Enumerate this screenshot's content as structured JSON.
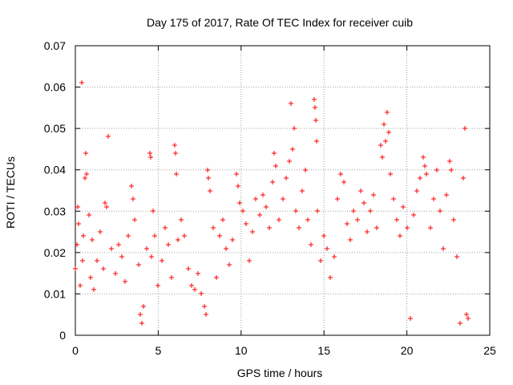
{
  "chart_data": {
    "type": "scatter",
    "title": "Day 175 of 2017, Rate Of TEC Index for receiver cuib",
    "xlabel": "GPS time / hours",
    "ylabel": "ROTI / TECUs",
    "xlim": [
      0,
      25
    ],
    "ylim": [
      0,
      0.07
    ],
    "xticks": [
      0,
      5,
      10,
      15,
      20,
      25
    ],
    "xtick_labels": [
      "0",
      "5",
      "10",
      "15",
      "20",
      "25"
    ],
    "yticks": [
      0,
      0.01,
      0.02,
      0.03,
      0.04,
      0.05,
      0.06,
      0.07
    ],
    "ytick_labels": [
      "0",
      "0.01",
      "0.02",
      "0.03",
      "0.04",
      "0.05",
      "0.06",
      "0.07"
    ],
    "grid": true,
    "marker": "+",
    "marker_color": "#ff0000",
    "series": [
      {
        "name": "ROTI",
        "points": [
          [
            0.0,
            0.016
          ],
          [
            0.1,
            0.022
          ],
          [
            0.15,
            0.031
          ],
          [
            0.2,
            0.027
          ],
          [
            0.3,
            0.012
          ],
          [
            0.4,
            0.061
          ],
          [
            0.45,
            0.018
          ],
          [
            0.5,
            0.024
          ],
          [
            0.6,
            0.038
          ],
          [
            0.65,
            0.044
          ],
          [
            0.7,
            0.039
          ],
          [
            0.8,
            0.029
          ],
          [
            0.9,
            0.014
          ],
          [
            1.0,
            0.023
          ],
          [
            1.1,
            0.011
          ],
          [
            1.3,
            0.018
          ],
          [
            1.5,
            0.025
          ],
          [
            1.7,
            0.016
          ],
          [
            1.8,
            0.032
          ],
          [
            1.9,
            0.031
          ],
          [
            2.0,
            0.048
          ],
          [
            2.2,
            0.021
          ],
          [
            2.4,
            0.015
          ],
          [
            2.6,
            0.022
          ],
          [
            2.8,
            0.019
          ],
          [
            3.0,
            0.013
          ],
          [
            3.2,
            0.024
          ],
          [
            3.4,
            0.036
          ],
          [
            3.5,
            0.033
          ],
          [
            3.6,
            0.028
          ],
          [
            3.8,
            0.017
          ],
          [
            3.9,
            0.005
          ],
          [
            4.0,
            0.003
          ],
          [
            4.1,
            0.007
          ],
          [
            4.3,
            0.021
          ],
          [
            4.5,
            0.044
          ],
          [
            4.55,
            0.043
          ],
          [
            4.6,
            0.019
          ],
          [
            4.7,
            0.03
          ],
          [
            4.8,
            0.024
          ],
          [
            5.0,
            0.012
          ],
          [
            5.2,
            0.018
          ],
          [
            5.4,
            0.026
          ],
          [
            5.6,
            0.022
          ],
          [
            5.8,
            0.014
          ],
          [
            6.0,
            0.046
          ],
          [
            6.05,
            0.044
          ],
          [
            6.1,
            0.039
          ],
          [
            6.2,
            0.023
          ],
          [
            6.4,
            0.028
          ],
          [
            6.6,
            0.024
          ],
          [
            6.8,
            0.016
          ],
          [
            7.0,
            0.012
          ],
          [
            7.2,
            0.011
          ],
          [
            7.4,
            0.015
          ],
          [
            7.6,
            0.01
          ],
          [
            7.8,
            0.007
          ],
          [
            7.9,
            0.005
          ],
          [
            8.0,
            0.04
          ],
          [
            8.05,
            0.038
          ],
          [
            8.1,
            0.035
          ],
          [
            8.3,
            0.026
          ],
          [
            8.5,
            0.014
          ],
          [
            8.7,
            0.024
          ],
          [
            8.9,
            0.028
          ],
          [
            9.1,
            0.021
          ],
          [
            9.3,
            0.017
          ],
          [
            9.5,
            0.023
          ],
          [
            9.7,
            0.039
          ],
          [
            9.8,
            0.036
          ],
          [
            9.9,
            0.032
          ],
          [
            10.1,
            0.03
          ],
          [
            10.3,
            0.027
          ],
          [
            10.5,
            0.018
          ],
          [
            10.7,
            0.025
          ],
          [
            10.9,
            0.033
          ],
          [
            11.1,
            0.029
          ],
          [
            11.3,
            0.034
          ],
          [
            11.5,
            0.031
          ],
          [
            11.7,
            0.026
          ],
          [
            11.9,
            0.037
          ],
          [
            12.0,
            0.044
          ],
          [
            12.1,
            0.041
          ],
          [
            12.3,
            0.028
          ],
          [
            12.5,
            0.033
          ],
          [
            12.7,
            0.038
          ],
          [
            12.9,
            0.042
          ],
          [
            13.0,
            0.056
          ],
          [
            13.1,
            0.045
          ],
          [
            13.2,
            0.05
          ],
          [
            13.3,
            0.03
          ],
          [
            13.5,
            0.026
          ],
          [
            13.7,
            0.035
          ],
          [
            13.9,
            0.04
          ],
          [
            14.0,
            0.028
          ],
          [
            14.2,
            0.022
          ],
          [
            14.4,
            0.057
          ],
          [
            14.45,
            0.055
          ],
          [
            14.5,
            0.052
          ],
          [
            14.55,
            0.047
          ],
          [
            14.6,
            0.03
          ],
          [
            14.8,
            0.018
          ],
          [
            15.0,
            0.024
          ],
          [
            15.2,
            0.021
          ],
          [
            15.4,
            0.014
          ],
          [
            15.6,
            0.019
          ],
          [
            15.8,
            0.033
          ],
          [
            16.0,
            0.039
          ],
          [
            16.2,
            0.037
          ],
          [
            16.4,
            0.027
          ],
          [
            16.6,
            0.023
          ],
          [
            16.8,
            0.03
          ],
          [
            17.0,
            0.028
          ],
          [
            17.2,
            0.035
          ],
          [
            17.4,
            0.032
          ],
          [
            17.6,
            0.025
          ],
          [
            17.8,
            0.03
          ],
          [
            18.0,
            0.034
          ],
          [
            18.2,
            0.026
          ],
          [
            18.4,
            0.046
          ],
          [
            18.5,
            0.043
          ],
          [
            18.6,
            0.051
          ],
          [
            18.7,
            0.047
          ],
          [
            18.8,
            0.054
          ],
          [
            18.9,
            0.049
          ],
          [
            19.0,
            0.039
          ],
          [
            19.2,
            0.033
          ],
          [
            19.4,
            0.028
          ],
          [
            19.6,
            0.024
          ],
          [
            19.8,
            0.031
          ],
          [
            20.0,
            0.026
          ],
          [
            20.2,
            0.004
          ],
          [
            20.4,
            0.029
          ],
          [
            20.6,
            0.035
          ],
          [
            20.8,
            0.038
          ],
          [
            21.0,
            0.043
          ],
          [
            21.1,
            0.041
          ],
          [
            21.2,
            0.039
          ],
          [
            21.4,
            0.026
          ],
          [
            21.6,
            0.033
          ],
          [
            21.8,
            0.04
          ],
          [
            22.0,
            0.03
          ],
          [
            22.2,
            0.021
          ],
          [
            22.4,
            0.034
          ],
          [
            22.6,
            0.042
          ],
          [
            22.7,
            0.04
          ],
          [
            22.8,
            0.028
          ],
          [
            23.0,
            0.019
          ],
          [
            23.2,
            0.003
          ],
          [
            23.4,
            0.038
          ],
          [
            23.5,
            0.05
          ],
          [
            23.6,
            0.005
          ],
          [
            23.7,
            0.004
          ]
        ]
      }
    ]
  }
}
